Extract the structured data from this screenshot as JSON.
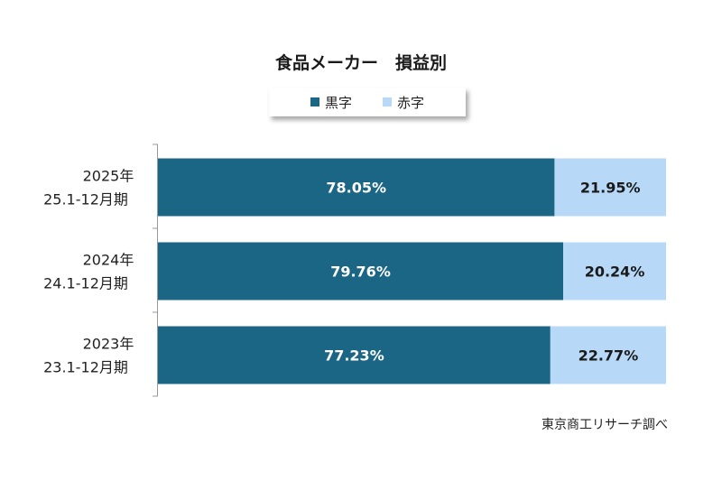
{
  "colors": {
    "profit": "#1b6585",
    "loss": "#b7d9f7",
    "axis": "#999999",
    "label_on_dark": "#ffffff",
    "label_on_light": "#1a1a1a"
  },
  "chart_data": {
    "type": "bar",
    "orientation": "horizontal",
    "stacked": "100%",
    "title": "食品メーカー　損益別",
    "categories": [
      {
        "line1": "2025年",
        "line2": "25.1-12月期"
      },
      {
        "line1": "2024年",
        "line2": "24.1-12月期"
      },
      {
        "line1": "2023年",
        "line2": "23.1-12月期"
      }
    ],
    "series": [
      {
        "name": "黒字",
        "values": [
          78.05,
          79.76,
          77.23
        ],
        "labels": [
          "78.05%",
          "79.76%",
          "77.23%"
        ]
      },
      {
        "name": "赤字",
        "values": [
          21.95,
          20.24,
          22.77
        ],
        "labels": [
          "21.95%",
          "20.24%",
          "22.77%"
        ]
      }
    ],
    "xlim": [
      0,
      100
    ],
    "grid": false,
    "legend_position": "top-center"
  },
  "source_note": "東京商工リサーチ調べ"
}
